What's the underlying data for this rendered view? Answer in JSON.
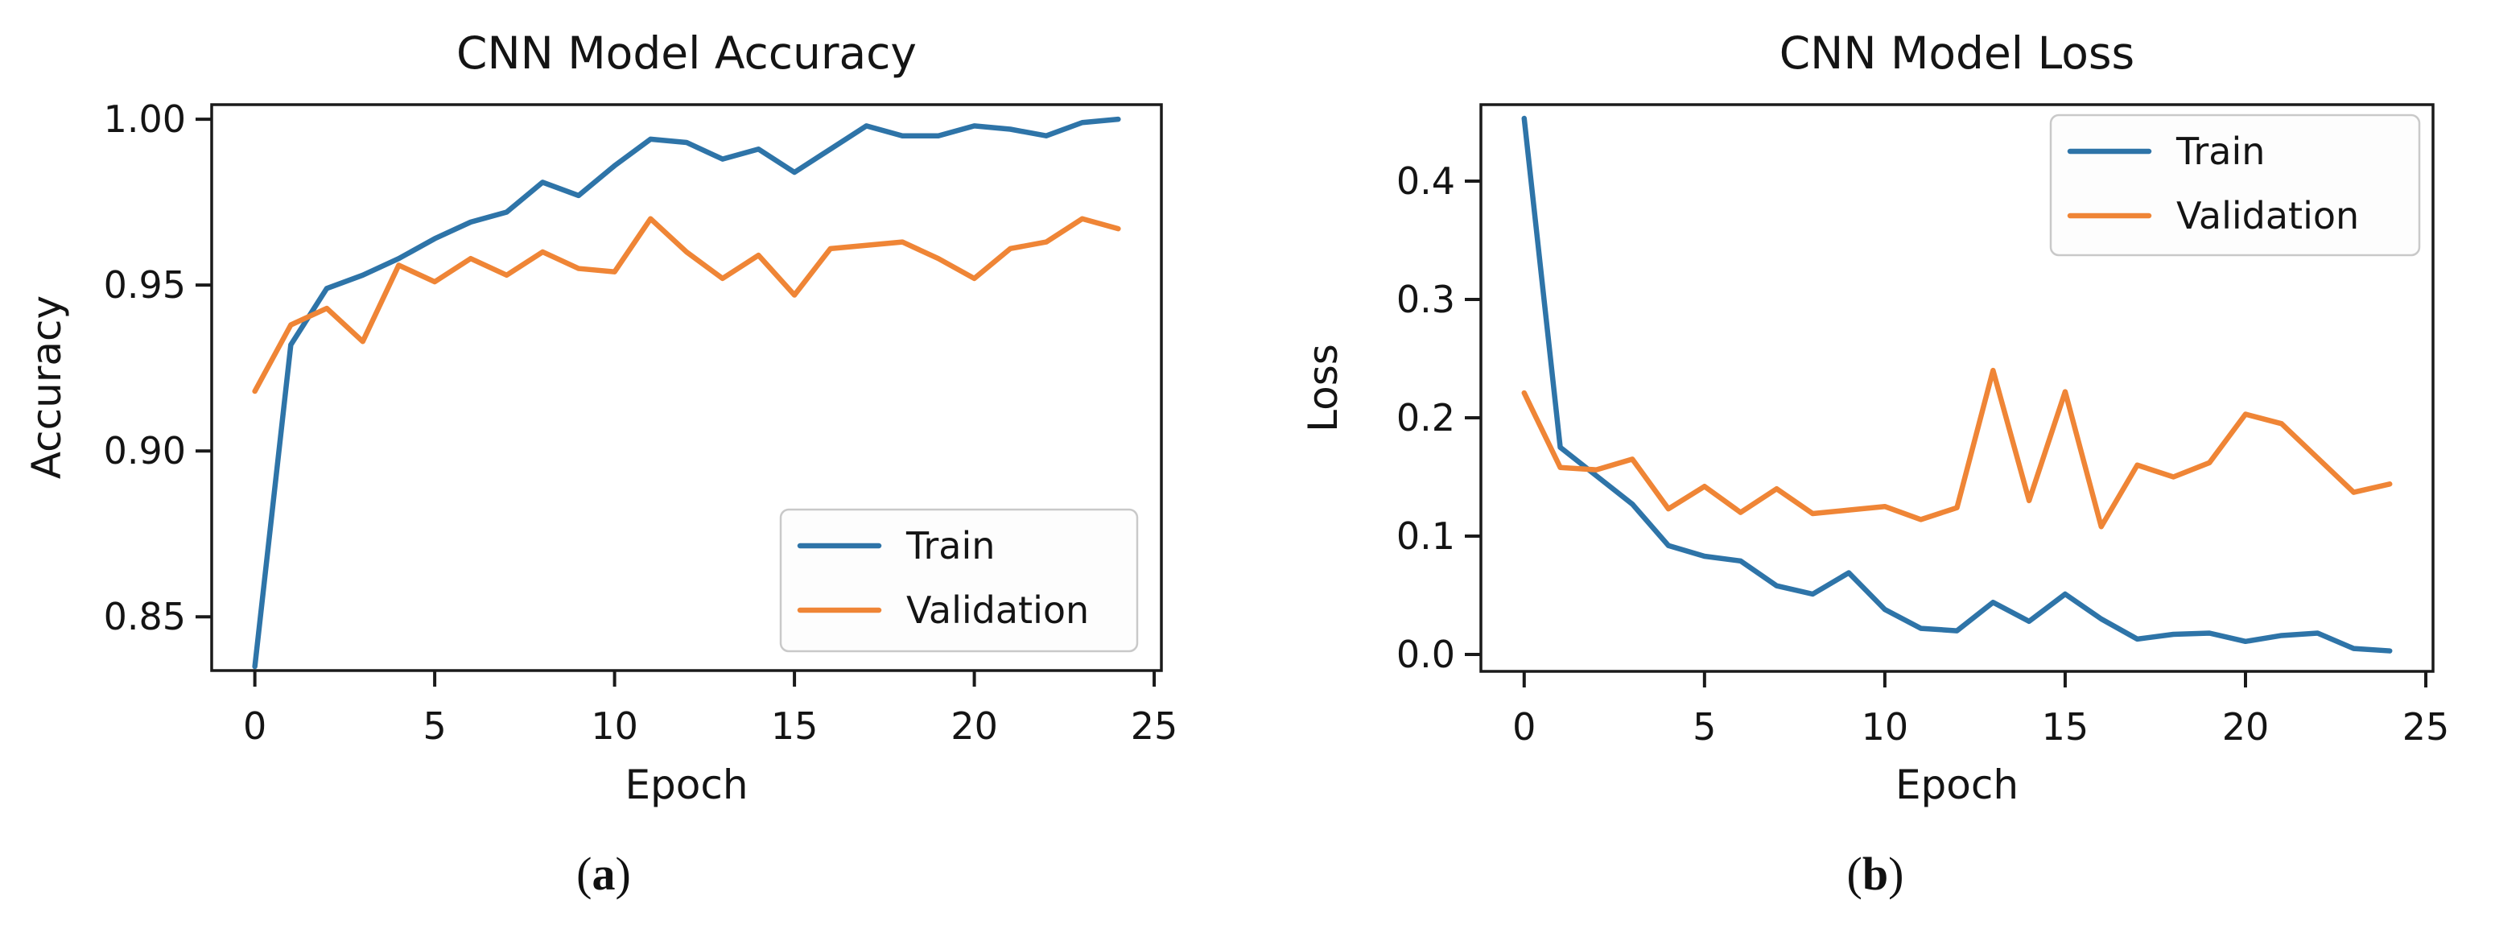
{
  "colors": {
    "train": "#2e74a8",
    "validation": "#ef8536",
    "axis": "#1a1a1a",
    "text": "#141414",
    "legend_border": "#c9c9c9",
    "legend_fill": "#fdfdfd"
  },
  "chart_data": [
    {
      "type": "line",
      "title": "CNN Model Accuracy",
      "xlabel": "Epoch",
      "ylabel": "Accuracy",
      "caption": {
        "open": "(",
        "letter": "a",
        "close": ")"
      },
      "x": [
        0,
        1,
        2,
        3,
        4,
        5,
        6,
        7,
        8,
        9,
        10,
        11,
        12,
        13,
        14,
        15,
        16,
        17,
        18,
        19,
        20,
        21,
        22,
        23,
        24
      ],
      "series": [
        {
          "name": "Train",
          "color_key": "train",
          "values": [
            0.835,
            0.932,
            0.949,
            0.953,
            0.958,
            0.964,
            0.969,
            0.972,
            0.981,
            0.977,
            0.986,
            0.994,
            0.993,
            0.988,
            0.991,
            0.984,
            0.991,
            0.998,
            0.995,
            0.995,
            0.998,
            0.997,
            0.995,
            0.999,
            1.0
          ]
        },
        {
          "name": "Validation",
          "color_key": "validation",
          "values": [
            0.918,
            0.938,
            0.943,
            0.933,
            0.956,
            0.951,
            0.958,
            0.953,
            0.96,
            0.955,
            0.954,
            0.97,
            0.96,
            0.952,
            0.959,
            0.947,
            0.961,
            0.962,
            0.963,
            0.958,
            0.952,
            0.961,
            0.963,
            0.97,
            0.967
          ]
        }
      ],
      "xlim": [
        -1.2,
        25.2
      ],
      "ylim": [
        0.8338,
        1.0044
      ],
      "x_ticks": {
        "values": [
          0,
          5,
          10,
          15,
          20,
          25
        ],
        "labels": [
          "0",
          "5",
          "10",
          "15",
          "20",
          "25"
        ]
      },
      "y_ticks": {
        "values": [
          1.0,
          0.95,
          0.9,
          0.85
        ],
        "labels": [
          "1.00",
          "0.95",
          "0.90",
          "0.85"
        ]
      },
      "legend": {
        "position": "lower right",
        "entries": [
          "Train",
          "Validation"
        ]
      },
      "grid": false
    },
    {
      "type": "line",
      "title": "CNN Model Loss",
      "xlabel": "Epoch",
      "ylabel": "Loss",
      "caption": {
        "open": "(",
        "letter": "b",
        "close": ")"
      },
      "x": [
        0,
        1,
        2,
        3,
        4,
        5,
        6,
        7,
        8,
        9,
        10,
        11,
        12,
        13,
        14,
        15,
        16,
        17,
        18,
        19,
        20,
        21,
        22,
        23,
        24
      ],
      "series": [
        {
          "name": "Train",
          "color_key": "train",
          "values": [
            0.453,
            0.175,
            0.151,
            0.127,
            0.092,
            0.083,
            0.079,
            0.058,
            0.051,
            0.069,
            0.038,
            0.022,
            0.02,
            0.044,
            0.028,
            0.051,
            0.03,
            0.013,
            0.017,
            0.018,
            0.011,
            0.016,
            0.018,
            0.005,
            0.003
          ]
        },
        {
          "name": "Validation",
          "color_key": "validation",
          "values": [
            0.221,
            0.158,
            0.156,
            0.165,
            0.123,
            0.142,
            0.12,
            0.14,
            0.119,
            0.122,
            0.125,
            0.114,
            0.124,
            0.24,
            0.13,
            0.222,
            0.108,
            0.16,
            0.15,
            0.162,
            0.203,
            0.195,
            0.166,
            0.137,
            0.144
          ]
        }
      ],
      "xlim": [
        -1.2,
        25.2
      ],
      "ylim": [
        -0.0143,
        0.4646
      ],
      "x_ticks": {
        "values": [
          0,
          5,
          10,
          15,
          20,
          25
        ],
        "labels": [
          "0",
          "5",
          "10",
          "15",
          "20",
          "25"
        ]
      },
      "y_ticks": {
        "values": [
          0.4,
          0.3,
          0.2,
          0.1,
          0.0
        ],
        "labels": [
          "0.4",
          "0.3",
          "0.2",
          "0.1",
          "0.0"
        ]
      },
      "legend": {
        "position": "upper right",
        "entries": [
          "Train",
          "Validation"
        ]
      },
      "grid": false
    }
  ]
}
